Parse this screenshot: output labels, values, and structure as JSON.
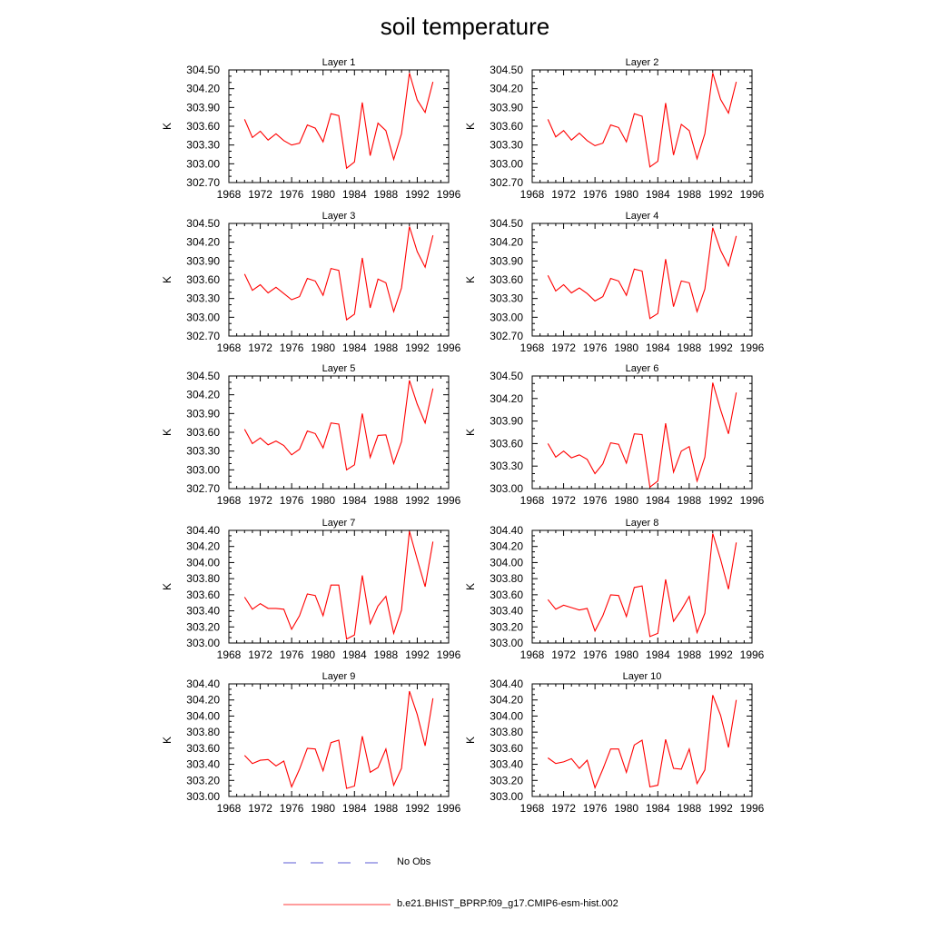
{
  "title": "soil temperature",
  "legend": [
    {
      "label": "No Obs",
      "color": "#5b5bd6",
      "dash": "dashed"
    },
    {
      "label": "b.e21.BHIST_BPRP.f09_g17.CMIP6-esm-hist.002",
      "color": "#ff3b3b",
      "dash": "solid"
    }
  ],
  "chart_data": [
    {
      "type": "line",
      "title": "Layer 1",
      "ylabel": "K",
      "xlim": [
        1968,
        1996
      ],
      "xticks": [
        "1968",
        "1972",
        "1976",
        "1980",
        "1984",
        "1988",
        "1992",
        "1996"
      ],
      "ylim": [
        302.7,
        304.5
      ],
      "yticks": [
        "302.70",
        "303.00",
        "303.30",
        "303.60",
        "303.90",
        "304.20",
        "304.50"
      ],
      "x": [
        1970,
        1971,
        1972,
        1973,
        1974,
        1975,
        1976,
        1977,
        1978,
        1979,
        1980,
        1981,
        1982,
        1983,
        1984,
        1985,
        1986,
        1987,
        1988,
        1989,
        1990,
        1991,
        1992,
        1993,
        1994
      ],
      "series": [
        {
          "name": "b.e21.BHIST_BPRP.f09_g17.CMIP6-esm-hist.002",
          "color": "#ff0000",
          "values": [
            303.71,
            303.42,
            303.52,
            303.38,
            303.48,
            303.37,
            303.3,
            303.33,
            303.62,
            303.57,
            303.35,
            303.8,
            303.77,
            302.93,
            303.03,
            303.98,
            303.13,
            303.65,
            303.53,
            303.07,
            303.48,
            304.45,
            304.02,
            303.82,
            304.31
          ]
        }
      ]
    },
    {
      "type": "line",
      "title": "Layer 2",
      "ylabel": "K",
      "xlim": [
        1968,
        1996
      ],
      "xticks": [
        "1968",
        "1972",
        "1976",
        "1980",
        "1984",
        "1988",
        "1992",
        "1996"
      ],
      "ylim": [
        302.7,
        304.5
      ],
      "yticks": [
        "302.70",
        "303.00",
        "303.30",
        "303.60",
        "303.90",
        "304.20",
        "304.50"
      ],
      "x": [
        1970,
        1971,
        1972,
        1973,
        1974,
        1975,
        1976,
        1977,
        1978,
        1979,
        1980,
        1981,
        1982,
        1983,
        1984,
        1985,
        1986,
        1987,
        1988,
        1989,
        1990,
        1991,
        1992,
        1993,
        1994
      ],
      "series": [
        {
          "name": "b.e21.BHIST_BPRP.f09_g17.CMIP6-esm-hist.002",
          "color": "#ff0000",
          "values": [
            303.71,
            303.43,
            303.53,
            303.38,
            303.49,
            303.37,
            303.29,
            303.33,
            303.62,
            303.58,
            303.35,
            303.8,
            303.76,
            302.95,
            303.04,
            303.97,
            303.14,
            303.63,
            303.53,
            303.08,
            303.48,
            304.45,
            304.03,
            303.81,
            304.31
          ]
        }
      ]
    },
    {
      "type": "line",
      "title": "Layer 3",
      "ylabel": "K",
      "xlim": [
        1968,
        1996
      ],
      "xticks": [
        "1968",
        "1972",
        "1976",
        "1980",
        "1984",
        "1988",
        "1992",
        "1996"
      ],
      "ylim": [
        302.7,
        304.5
      ],
      "yticks": [
        "302.70",
        "303.00",
        "303.30",
        "303.60",
        "303.90",
        "304.20",
        "304.50"
      ],
      "x": [
        1970,
        1971,
        1972,
        1973,
        1974,
        1975,
        1976,
        1977,
        1978,
        1979,
        1980,
        1981,
        1982,
        1983,
        1984,
        1985,
        1986,
        1987,
        1988,
        1989,
        1990,
        1991,
        1992,
        1993,
        1994
      ],
      "series": [
        {
          "name": "b.e21.BHIST_BPRP.f09_g17.CMIP6-esm-hist.002",
          "color": "#ff0000",
          "values": [
            303.69,
            303.43,
            303.52,
            303.39,
            303.48,
            303.38,
            303.28,
            303.33,
            303.62,
            303.58,
            303.35,
            303.78,
            303.75,
            302.96,
            303.05,
            303.95,
            303.15,
            303.61,
            303.55,
            303.09,
            303.47,
            304.45,
            304.05,
            303.8,
            304.31
          ]
        }
      ]
    },
    {
      "type": "line",
      "title": "Layer 4",
      "ylabel": "K",
      "xlim": [
        1968,
        1996
      ],
      "xticks": [
        "1968",
        "1972",
        "1976",
        "1980",
        "1984",
        "1988",
        "1992",
        "1996"
      ],
      "ylim": [
        302.7,
        304.5
      ],
      "yticks": [
        "302.70",
        "303.00",
        "303.30",
        "303.60",
        "303.90",
        "304.20",
        "304.50"
      ],
      "x": [
        1970,
        1971,
        1972,
        1973,
        1974,
        1975,
        1976,
        1977,
        1978,
        1979,
        1980,
        1981,
        1982,
        1983,
        1984,
        1985,
        1986,
        1987,
        1988,
        1989,
        1990,
        1991,
        1992,
        1993,
        1994
      ],
      "series": [
        {
          "name": "b.e21.BHIST_BPRP.f09_g17.CMIP6-esm-hist.002",
          "color": "#ff0000",
          "values": [
            303.67,
            303.42,
            303.52,
            303.39,
            303.47,
            303.38,
            303.26,
            303.33,
            303.62,
            303.58,
            303.35,
            303.77,
            303.74,
            302.98,
            303.06,
            303.93,
            303.17,
            303.58,
            303.55,
            303.09,
            303.45,
            304.43,
            304.07,
            303.82,
            304.3
          ]
        }
      ]
    },
    {
      "type": "line",
      "title": "Layer 5",
      "ylabel": "K",
      "xlim": [
        1968,
        1996
      ],
      "xticks": [
        "1968",
        "1972",
        "1976",
        "1980",
        "1984",
        "1988",
        "1992",
        "1996"
      ],
      "ylim": [
        302.7,
        304.5
      ],
      "yticks": [
        "302.70",
        "303.00",
        "303.30",
        "303.60",
        "303.90",
        "304.20",
        "304.50"
      ],
      "x": [
        1970,
        1971,
        1972,
        1973,
        1974,
        1975,
        1976,
        1977,
        1978,
        1979,
        1980,
        1981,
        1982,
        1983,
        1984,
        1985,
        1986,
        1987,
        1988,
        1989,
        1990,
        1991,
        1992,
        1993,
        1994
      ],
      "series": [
        {
          "name": "b.e21.BHIST_BPRP.f09_g17.CMIP6-esm-hist.002",
          "color": "#ff0000",
          "values": [
            303.65,
            303.42,
            303.51,
            303.4,
            303.46,
            303.39,
            303.24,
            303.33,
            303.62,
            303.58,
            303.35,
            303.75,
            303.73,
            303.0,
            303.08,
            303.9,
            303.2,
            303.55,
            303.56,
            303.1,
            303.45,
            304.43,
            304.05,
            303.75,
            304.3
          ]
        }
      ]
    },
    {
      "type": "line",
      "title": "Layer 6",
      "ylabel": "K",
      "xlim": [
        1968,
        1996
      ],
      "xticks": [
        "1968",
        "1972",
        "1976",
        "1980",
        "1984",
        "1988",
        "1992",
        "1996"
      ],
      "ylim": [
        303.0,
        304.5
      ],
      "yticks": [
        "303.00",
        "303.30",
        "303.60",
        "303.90",
        "304.20",
        "304.50"
      ],
      "x": [
        1970,
        1971,
        1972,
        1973,
        1974,
        1975,
        1976,
        1977,
        1978,
        1979,
        1980,
        1981,
        1982,
        1983,
        1984,
        1985,
        1986,
        1987,
        1988,
        1989,
        1990,
        1991,
        1992,
        1993,
        1994
      ],
      "series": [
        {
          "name": "b.e21.BHIST_BPRP.f09_g17.CMIP6-esm-hist.002",
          "color": "#ff0000",
          "values": [
            303.6,
            303.42,
            303.5,
            303.41,
            303.45,
            303.39,
            303.2,
            303.33,
            303.61,
            303.59,
            303.34,
            303.73,
            303.72,
            303.02,
            303.1,
            303.87,
            303.22,
            303.5,
            303.56,
            303.1,
            303.42,
            304.41,
            304.05,
            303.73,
            304.28
          ]
        }
      ]
    },
    {
      "type": "line",
      "title": "Layer 7",
      "ylabel": "K",
      "xlim": [
        1968,
        1996
      ],
      "xticks": [
        "1968",
        "1972",
        "1976",
        "1980",
        "1984",
        "1988",
        "1992",
        "1996"
      ],
      "ylim": [
        303.0,
        304.4
      ],
      "yticks": [
        "303.00",
        "303.20",
        "303.40",
        "303.60",
        "303.80",
        "304.00",
        "304.20",
        "304.40"
      ],
      "x": [
        1970,
        1971,
        1972,
        1973,
        1974,
        1975,
        1976,
        1977,
        1978,
        1979,
        1980,
        1981,
        1982,
        1983,
        1984,
        1985,
        1986,
        1987,
        1988,
        1989,
        1990,
        1991,
        1992,
        1993,
        1994
      ],
      "series": [
        {
          "name": "b.e21.BHIST_BPRP.f09_g17.CMIP6-esm-hist.002",
          "color": "#ff0000",
          "values": [
            303.57,
            303.42,
            303.49,
            303.43,
            303.43,
            303.42,
            303.17,
            303.34,
            303.61,
            303.59,
            303.34,
            303.72,
            303.72,
            303.05,
            303.1,
            303.84,
            303.24,
            303.46,
            303.58,
            303.12,
            303.41,
            304.39,
            304.04,
            303.7,
            304.26
          ]
        }
      ]
    },
    {
      "type": "line",
      "title": "Layer 8",
      "ylabel": "K",
      "xlim": [
        1968,
        1996
      ],
      "xticks": [
        "1968",
        "1972",
        "1976",
        "1980",
        "1984",
        "1988",
        "1992",
        "1996"
      ],
      "ylim": [
        303.0,
        304.4
      ],
      "yticks": [
        "303.00",
        "303.20",
        "303.40",
        "303.60",
        "303.80",
        "304.00",
        "304.20",
        "304.40"
      ],
      "x": [
        1970,
        1971,
        1972,
        1973,
        1974,
        1975,
        1976,
        1977,
        1978,
        1979,
        1980,
        1981,
        1982,
        1983,
        1984,
        1985,
        1986,
        1987,
        1988,
        1989,
        1990,
        1991,
        1992,
        1993,
        1994
      ],
      "series": [
        {
          "name": "b.e21.BHIST_BPRP.f09_g17.CMIP6-esm-hist.002",
          "color": "#ff0000",
          "values": [
            303.54,
            303.42,
            303.47,
            303.44,
            303.41,
            303.43,
            303.15,
            303.34,
            303.6,
            303.59,
            303.33,
            303.69,
            303.71,
            303.08,
            303.12,
            303.79,
            303.27,
            303.41,
            303.58,
            303.13,
            303.37,
            304.36,
            304.04,
            303.67,
            304.25
          ]
        }
      ]
    },
    {
      "type": "line",
      "title": "Layer 9",
      "ylabel": "K",
      "xlim": [
        1968,
        1996
      ],
      "xticks": [
        "1968",
        "1972",
        "1976",
        "1980",
        "1984",
        "1988",
        "1992",
        "1996"
      ],
      "ylim": [
        303.0,
        304.4
      ],
      "yticks": [
        "303.00",
        "303.20",
        "303.40",
        "303.60",
        "303.80",
        "304.00",
        "304.20",
        "304.40"
      ],
      "x": [
        1970,
        1971,
        1972,
        1973,
        1974,
        1975,
        1976,
        1977,
        1978,
        1979,
        1980,
        1981,
        1982,
        1983,
        1984,
        1985,
        1986,
        1987,
        1988,
        1989,
        1990,
        1991,
        1992,
        1993,
        1994
      ],
      "series": [
        {
          "name": "b.e21.BHIST_BPRP.f09_g17.CMIP6-esm-hist.002",
          "color": "#ff0000",
          "values": [
            303.51,
            303.41,
            303.45,
            303.46,
            303.38,
            303.44,
            303.12,
            303.34,
            303.6,
            303.59,
            303.32,
            303.67,
            303.7,
            303.1,
            303.13,
            303.75,
            303.3,
            303.36,
            303.59,
            303.14,
            303.35,
            304.31,
            304.02,
            303.63,
            304.22
          ]
        }
      ]
    },
    {
      "type": "line",
      "title": "Layer 10",
      "ylabel": "K",
      "xlim": [
        1968,
        1996
      ],
      "xticks": [
        "1968",
        "1972",
        "1976",
        "1980",
        "1984",
        "1988",
        "1992",
        "1996"
      ],
      "ylim": [
        303.0,
        304.4
      ],
      "yticks": [
        "303.00",
        "303.20",
        "303.40",
        "303.60",
        "303.80",
        "304.00",
        "304.20",
        "304.40"
      ],
      "x": [
        1970,
        1971,
        1972,
        1973,
        1974,
        1975,
        1976,
        1977,
        1978,
        1979,
        1980,
        1981,
        1982,
        1983,
        1984,
        1985,
        1986,
        1987,
        1988,
        1989,
        1990,
        1991,
        1992,
        1993,
        1994
      ],
      "series": [
        {
          "name": "b.e21.BHIST_BPRP.f09_g17.CMIP6-esm-hist.002",
          "color": "#ff0000",
          "values": [
            303.48,
            303.41,
            303.43,
            303.47,
            303.35,
            303.45,
            303.11,
            303.34,
            303.59,
            303.59,
            303.3,
            303.64,
            303.7,
            303.12,
            303.14,
            303.71,
            303.35,
            303.34,
            303.59,
            303.16,
            303.33,
            304.26,
            304.01,
            303.61,
            304.2
          ]
        }
      ]
    }
  ]
}
